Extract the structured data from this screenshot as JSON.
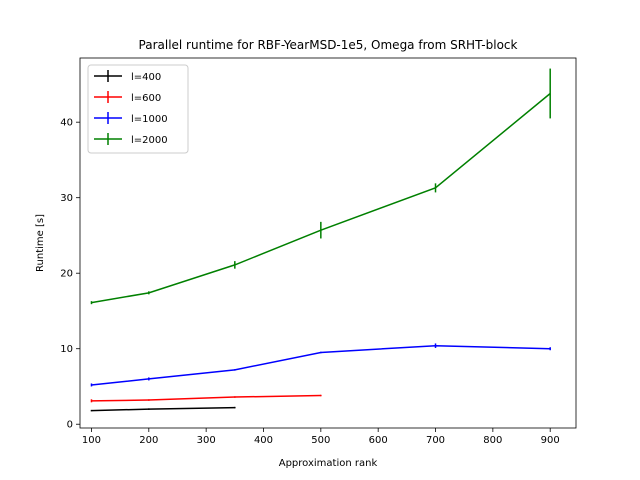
{
  "chart_data": {
    "type": "line",
    "title": "Parallel runtime for RBF-YearMSD-1e5, Omega from SRHT-block",
    "xlabel": "Approximation rank",
    "ylabel": "Runtime [s]",
    "xlim": [
      80,
      945
    ],
    "ylim": [
      -0.5,
      48.5
    ],
    "xticks": [
      100,
      200,
      300,
      400,
      500,
      600,
      700,
      800,
      900
    ],
    "yticks": [
      0,
      10,
      20,
      30,
      40
    ],
    "grid": false,
    "legend_position": "top-left",
    "series": [
      {
        "name": "l=400",
        "color": "#000000",
        "x": [
          100,
          200,
          350
        ],
        "y": [
          1.8,
          2.0,
          2.2
        ],
        "err": [
          0.1,
          0.1,
          0.1
        ]
      },
      {
        "name": "l=600",
        "color": "#ff0000",
        "x": [
          100,
          200,
          350,
          500
        ],
        "y": [
          3.1,
          3.2,
          3.6,
          3.8
        ],
        "err": [
          0.2,
          0.1,
          0.1,
          0.1
        ]
      },
      {
        "name": "l=1000",
        "color": "#0000ff",
        "x": [
          100,
          200,
          350,
          500,
          700,
          900
        ],
        "y": [
          5.2,
          6.0,
          7.2,
          9.5,
          10.4,
          10.0
        ],
        "err": [
          0.2,
          0.2,
          0.1,
          0.1,
          0.3,
          0.2
        ]
      },
      {
        "name": "l=2000",
        "color": "#008000",
        "x": [
          100,
          200,
          350,
          500,
          700,
          900
        ],
        "y": [
          16.1,
          17.4,
          21.1,
          25.7,
          31.3,
          43.8
        ],
        "err": [
          0.2,
          0.2,
          0.5,
          1.1,
          0.6,
          3.3
        ]
      }
    ]
  }
}
